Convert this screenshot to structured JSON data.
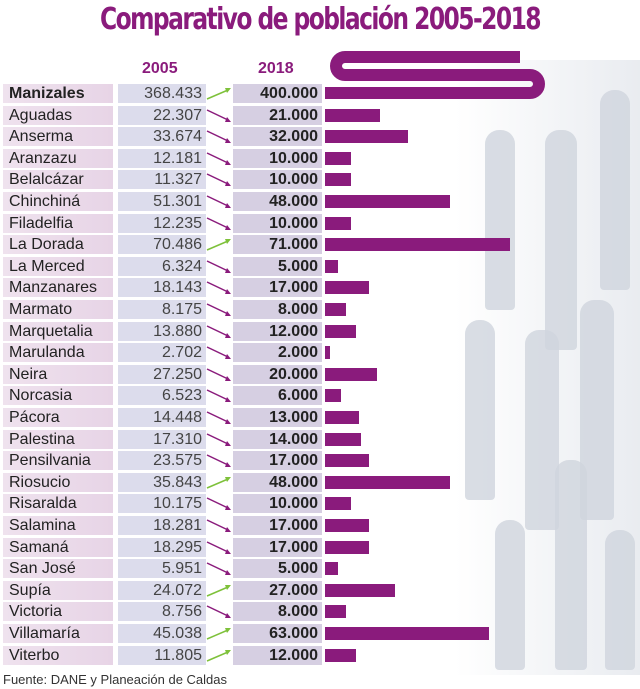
{
  "chart_data": {
    "type": "bar",
    "title": "Comparativo de población 2005-2018",
    "series_labels": [
      "2005",
      "2018"
    ],
    "categories": [
      "Manizales",
      "Aguadas",
      "Anserma",
      "Aranzazu",
      "Belalcázar",
      "Chinchiná",
      "Filadelfia",
      "La Dorada",
      "La Merced",
      "Manzanares",
      "Marmato",
      "Marquetalia",
      "Marulanda",
      "Neira",
      "Norcasia",
      "Pácora",
      "Palestina",
      "Pensilvania",
      "Riosucio",
      "Risaralda",
      "Salamina",
      "Samaná",
      "San José",
      "Supía",
      "Victoria",
      "Villamaría",
      "Viterbo"
    ],
    "labels_2005": [
      "368.433",
      "22.307",
      "33.674",
      "12.181",
      "11.327",
      "51.301",
      "12.235",
      "70.486",
      "6.324",
      "18.143",
      "8.175",
      "13.880",
      "2.702",
      "27.250",
      "6.523",
      "14.448",
      "17.310",
      "23.575",
      "35.843",
      "10.175",
      "18.281",
      "18.295",
      "5.951",
      "24.072",
      "8.756",
      "45.038",
      "11.805"
    ],
    "labels_2018": [
      "400.000",
      "21.000",
      "32.000",
      "10.000",
      "10.000",
      "48.000",
      "10.000",
      "71.000",
      "5.000",
      "17.000",
      "8.000",
      "12.000",
      "2.000",
      "20.000",
      "6.000",
      "13.000",
      "14.000",
      "17.000",
      "48.000",
      "10.000",
      "17.000",
      "17.000",
      "5.000",
      "27.000",
      "8.000",
      "63.000",
      "12.000"
    ],
    "values_2005": [
      368433,
      22307,
      33674,
      12181,
      11327,
      51301,
      12235,
      70486,
      6324,
      18143,
      8175,
      13880,
      2702,
      27250,
      6523,
      14448,
      17310,
      23575,
      35843,
      10175,
      18281,
      18295,
      5951,
      24072,
      8756,
      45038,
      11805
    ],
    "values_2018": [
      400000,
      21000,
      32000,
      10000,
      10000,
      48000,
      10000,
      71000,
      5000,
      17000,
      8000,
      12000,
      2000,
      20000,
      6000,
      13000,
      14000,
      17000,
      48000,
      10000,
      17000,
      17000,
      5000,
      27000,
      8000,
      63000,
      12000
    ],
    "source": "Fuente: DANE y Planeación de Caldas"
  },
  "colors": {
    "bar": "#8a1b7c",
    "up": "#7ec13a",
    "down": "#8a1b7c"
  }
}
